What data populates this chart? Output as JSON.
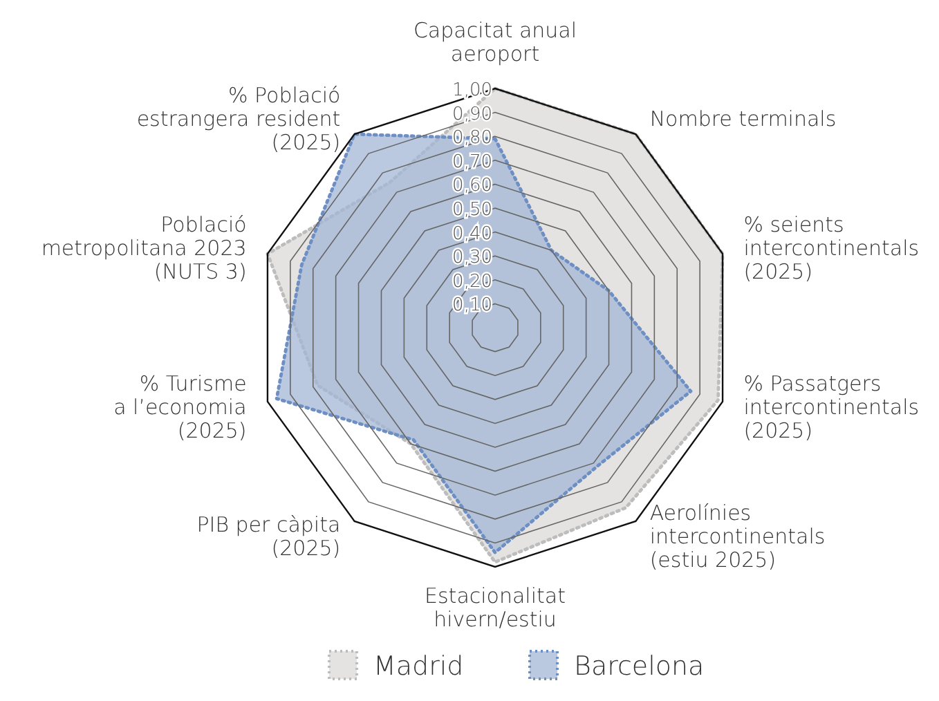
{
  "chart_data": {
    "type": "radar",
    "categories": [
      "Capacitat anual\naeroport",
      "Nombre terminals",
      "% seients\nintercontinentals\n(2025)",
      "% Passatgers\nintercontinentals\n(2025)",
      "Aerolínies\nintercontinentals\n(estiu 2025)",
      "Estacionalitat\nhivern/estiu",
      "PIB per càpita\n(2025)",
      "% Turisme\na l’economia\n(2025)",
      "Població\nmetropolitana 2023\n(NUTS 3)",
      "% Població\nestrangera resident\n(2025)"
    ],
    "series": [
      {
        "name": "Madrid",
        "color": "#bdbdbd",
        "values": [
          1.0,
          1.0,
          1.0,
          0.98,
          0.93,
          0.98,
          0.6,
          0.78,
          1.0,
          0.75
        ]
      },
      {
        "name": "Barcelona",
        "color": "#6d8fc4",
        "values": [
          0.79,
          0.4,
          0.5,
          0.86,
          0.72,
          0.94,
          0.58,
          0.96,
          0.85,
          1.0
        ]
      }
    ],
    "ylim": [
      0,
      1
    ],
    "yticks": [
      {
        "value": 0.1,
        "label": "0,10"
      },
      {
        "value": 0.2,
        "label": "0,20"
      },
      {
        "value": 0.3,
        "label": "0,30"
      },
      {
        "value": 0.4,
        "label": "0,40"
      },
      {
        "value": 0.5,
        "label": "0,50"
      },
      {
        "value": 0.6,
        "label": "0,60"
      },
      {
        "value": 0.7,
        "label": "0,70"
      },
      {
        "value": 0.8,
        "label": "0,80"
      },
      {
        "value": 0.9,
        "label": "0,90"
      },
      {
        "value": 1.0,
        "label": "1,00"
      }
    ],
    "grid": true,
    "legend": "bottom",
    "line_style": "dotted",
    "marker": "none"
  }
}
